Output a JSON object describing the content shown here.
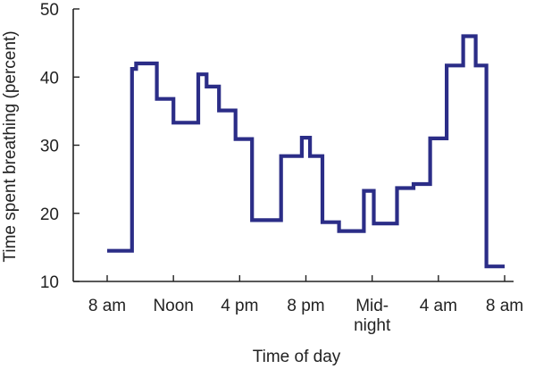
{
  "chart_data": {
    "type": "line",
    "step": true,
    "title": "",
    "xlabel": "Time of day",
    "ylabel": "Time spent breathing (percent)",
    "ylim": [
      10,
      50
    ],
    "xlim": [
      0,
      24
    ],
    "yticks": [
      10,
      20,
      30,
      40,
      50
    ],
    "xticks": [
      {
        "x": 0,
        "lines": [
          "8 am"
        ]
      },
      {
        "x": 4,
        "lines": [
          "Noon"
        ]
      },
      {
        "x": 8,
        "lines": [
          "4 pm"
        ]
      },
      {
        "x": 12,
        "lines": [
          "8 pm"
        ]
      },
      {
        "x": 16,
        "lines": [
          "Mid-",
          "night"
        ]
      },
      {
        "x": 20,
        "lines": [
          "4 am"
        ]
      },
      {
        "x": 24,
        "lines": [
          "8 am"
        ]
      }
    ],
    "colors": {
      "line": "#2b2d87",
      "axis": "#222222"
    },
    "grid": false,
    "series": [
      {
        "name": "",
        "points": [
          [
            0,
            14.5
          ],
          [
            1.5,
            14.5
          ],
          [
            1.5,
            41.2
          ],
          [
            1.75,
            41.2
          ],
          [
            1.75,
            42
          ],
          [
            3,
            42
          ],
          [
            3,
            36.8
          ],
          [
            4,
            36.8
          ],
          [
            4,
            33.3
          ],
          [
            5.5,
            33.3
          ],
          [
            5.5,
            40.4
          ],
          [
            6,
            40.4
          ],
          [
            6,
            38.6
          ],
          [
            6.75,
            38.6
          ],
          [
            6.75,
            35.1
          ],
          [
            7.75,
            35.1
          ],
          [
            7.75,
            30.9
          ],
          [
            8.75,
            30.9
          ],
          [
            8.75,
            19
          ],
          [
            10.5,
            19
          ],
          [
            10.5,
            28.4
          ],
          [
            11.75,
            28.4
          ],
          [
            11.75,
            31.1
          ],
          [
            12.25,
            31.1
          ],
          [
            12.25,
            28.4
          ],
          [
            13,
            28.4
          ],
          [
            13,
            18.7
          ],
          [
            14,
            18.7
          ],
          [
            14,
            17.4
          ],
          [
            15.5,
            17.4
          ],
          [
            15.5,
            23.3
          ],
          [
            16.1,
            23.3
          ],
          [
            16.1,
            18.5
          ],
          [
            17.5,
            18.5
          ],
          [
            17.5,
            23.7
          ],
          [
            18.5,
            23.7
          ],
          [
            18.5,
            24.3
          ],
          [
            19.5,
            24.3
          ],
          [
            19.5,
            31
          ],
          [
            20.5,
            31
          ],
          [
            20.5,
            41.7
          ],
          [
            21.5,
            41.7
          ],
          [
            21.5,
            46
          ],
          [
            22.25,
            46
          ],
          [
            22.25,
            41.7
          ],
          [
            22.9,
            41.7
          ],
          [
            22.9,
            12.2
          ],
          [
            24,
            12.2
          ]
        ]
      }
    ]
  }
}
